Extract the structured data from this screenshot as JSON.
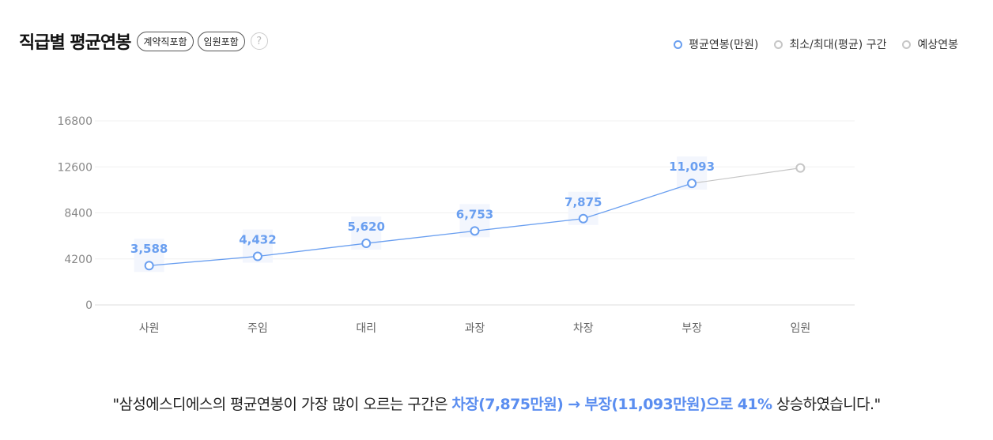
{
  "header": {
    "title": "직급별 평균연봉",
    "pills": [
      "계약직포함",
      "임원포함"
    ],
    "help_glyph": "?"
  },
  "legend": [
    {
      "label": "평균연봉(만원)",
      "color": "#6a9ff0"
    },
    {
      "label": "최소/최대(평균) 구간",
      "color": "#c6c6c6"
    },
    {
      "label": "예상연봉",
      "color": "#c6c6c6"
    }
  ],
  "chart_data": {
    "type": "line",
    "categories": [
      "사원",
      "주임",
      "대리",
      "과장",
      "차장",
      "부장",
      "임원"
    ],
    "series": [
      {
        "name": "평균연봉(만원)",
        "values": [
          3588,
          4432,
          5620,
          6753,
          7875,
          11093,
          null
        ],
        "labels": [
          "3,588",
          "4,432",
          "5,620",
          "6,753",
          "7,875",
          "11,093",
          ""
        ],
        "color": "#6a9ff0"
      },
      {
        "name": "예상연봉",
        "values": [
          null,
          null,
          null,
          null,
          null,
          11093,
          12500
        ],
        "color": "#c6c6c6"
      }
    ],
    "ylim": [
      0,
      16800
    ],
    "yticks": [
      0,
      4200,
      8400,
      12600,
      16800
    ],
    "grid": true,
    "legend_position": "top-right"
  },
  "footer": {
    "prefix": "\"삼성에스디에스의 평균연봉이 가장 많이 오르는 구간은 ",
    "highlight": "차장(7,875만원) → 부장(11,093만원)으로 41%",
    "suffix": " 상승하였습니다.\""
  }
}
